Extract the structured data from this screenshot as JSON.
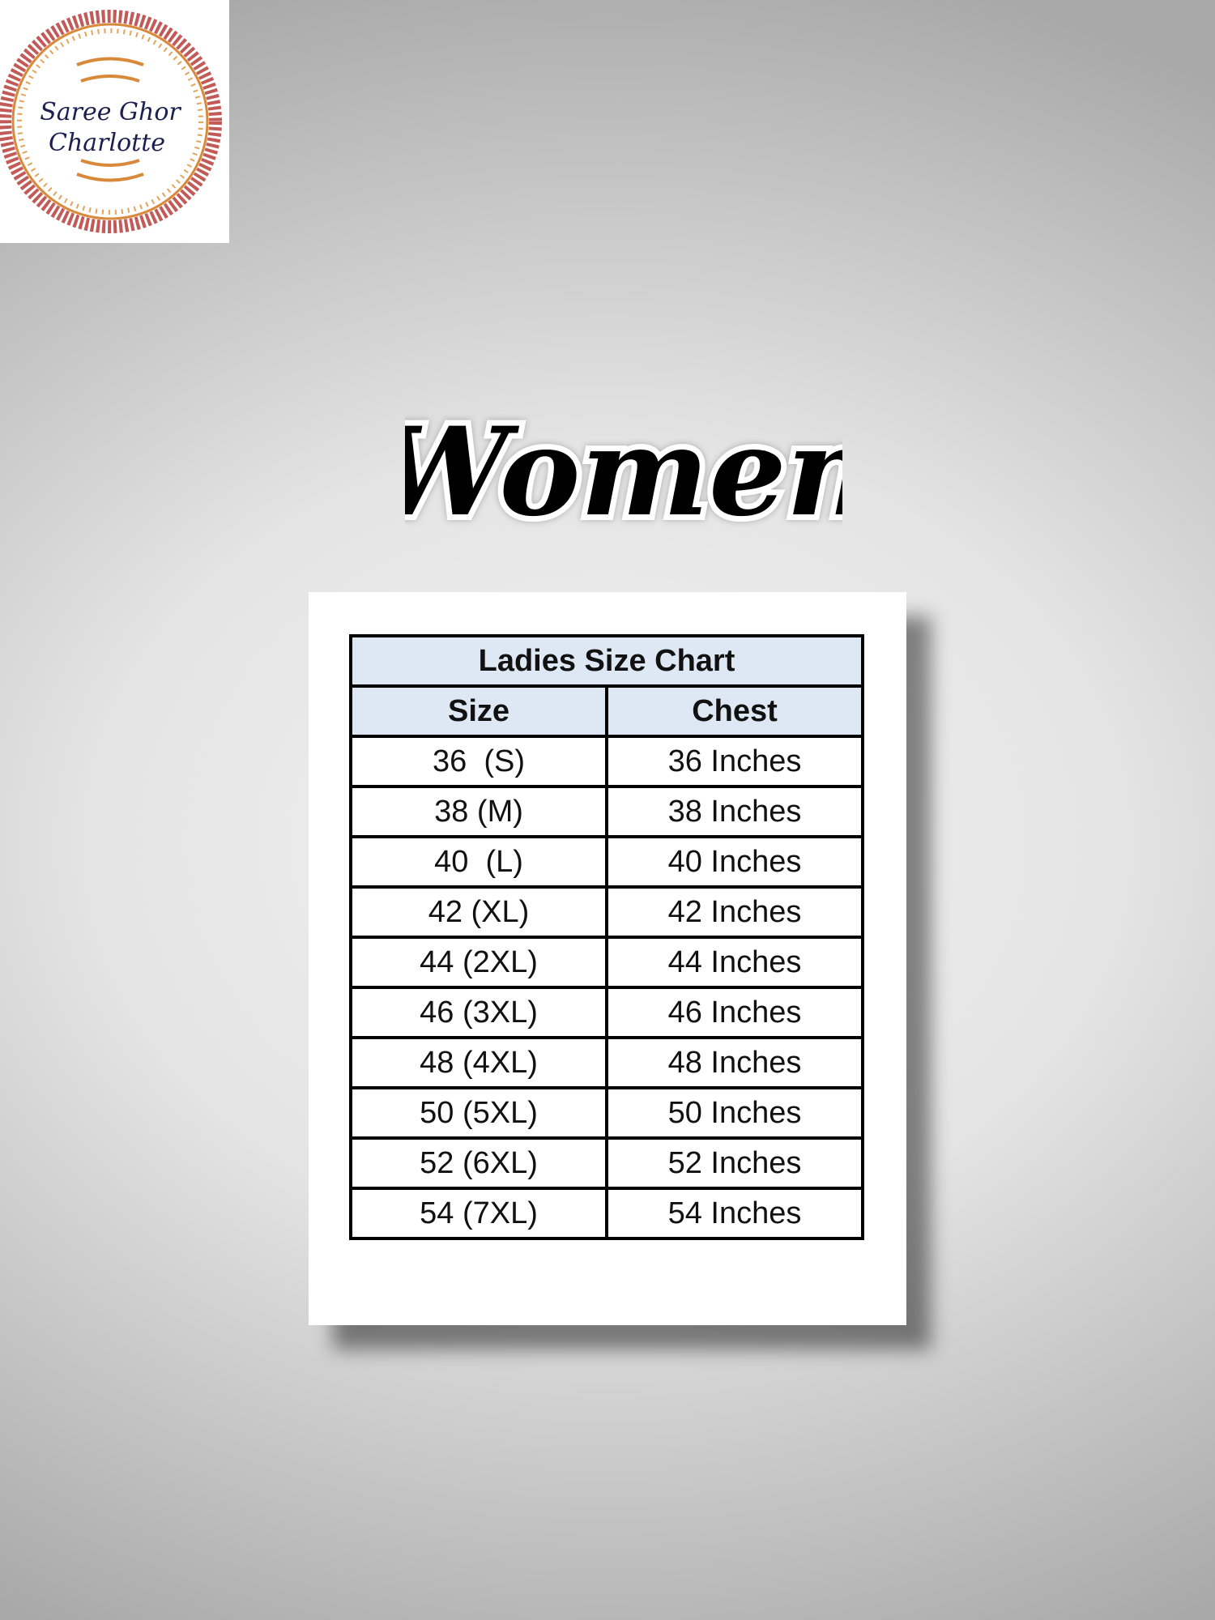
{
  "logo": {
    "text_line1": "Saree Ghor",
    "text_line2": "Charlotte",
    "ornament_colors": [
      "#b5474a",
      "#d8893a"
    ],
    "text_color": "#1c1f4f"
  },
  "heading": "Women",
  "size_chart": {
    "title": "Ladies Size Chart",
    "columns": [
      "Size",
      "Chest"
    ],
    "rows": [
      [
        "36  (S)",
        "36 Inches"
      ],
      [
        "38 (M)",
        "38 Inches"
      ],
      [
        "40  (L)",
        "40 Inches"
      ],
      [
        "42 (XL)",
        "42 Inches"
      ],
      [
        "44 (2XL)",
        "44 Inches"
      ],
      [
        "46 (3XL)",
        "46 Inches"
      ],
      [
        "48 (4XL)",
        "48 Inches"
      ],
      [
        "50 (5XL)",
        "50 Inches"
      ],
      [
        "52 (6XL)",
        "52 Inches"
      ],
      [
        "54 (7XL)",
        "54 Inches"
      ]
    ],
    "header_color": "#dde8f4"
  }
}
